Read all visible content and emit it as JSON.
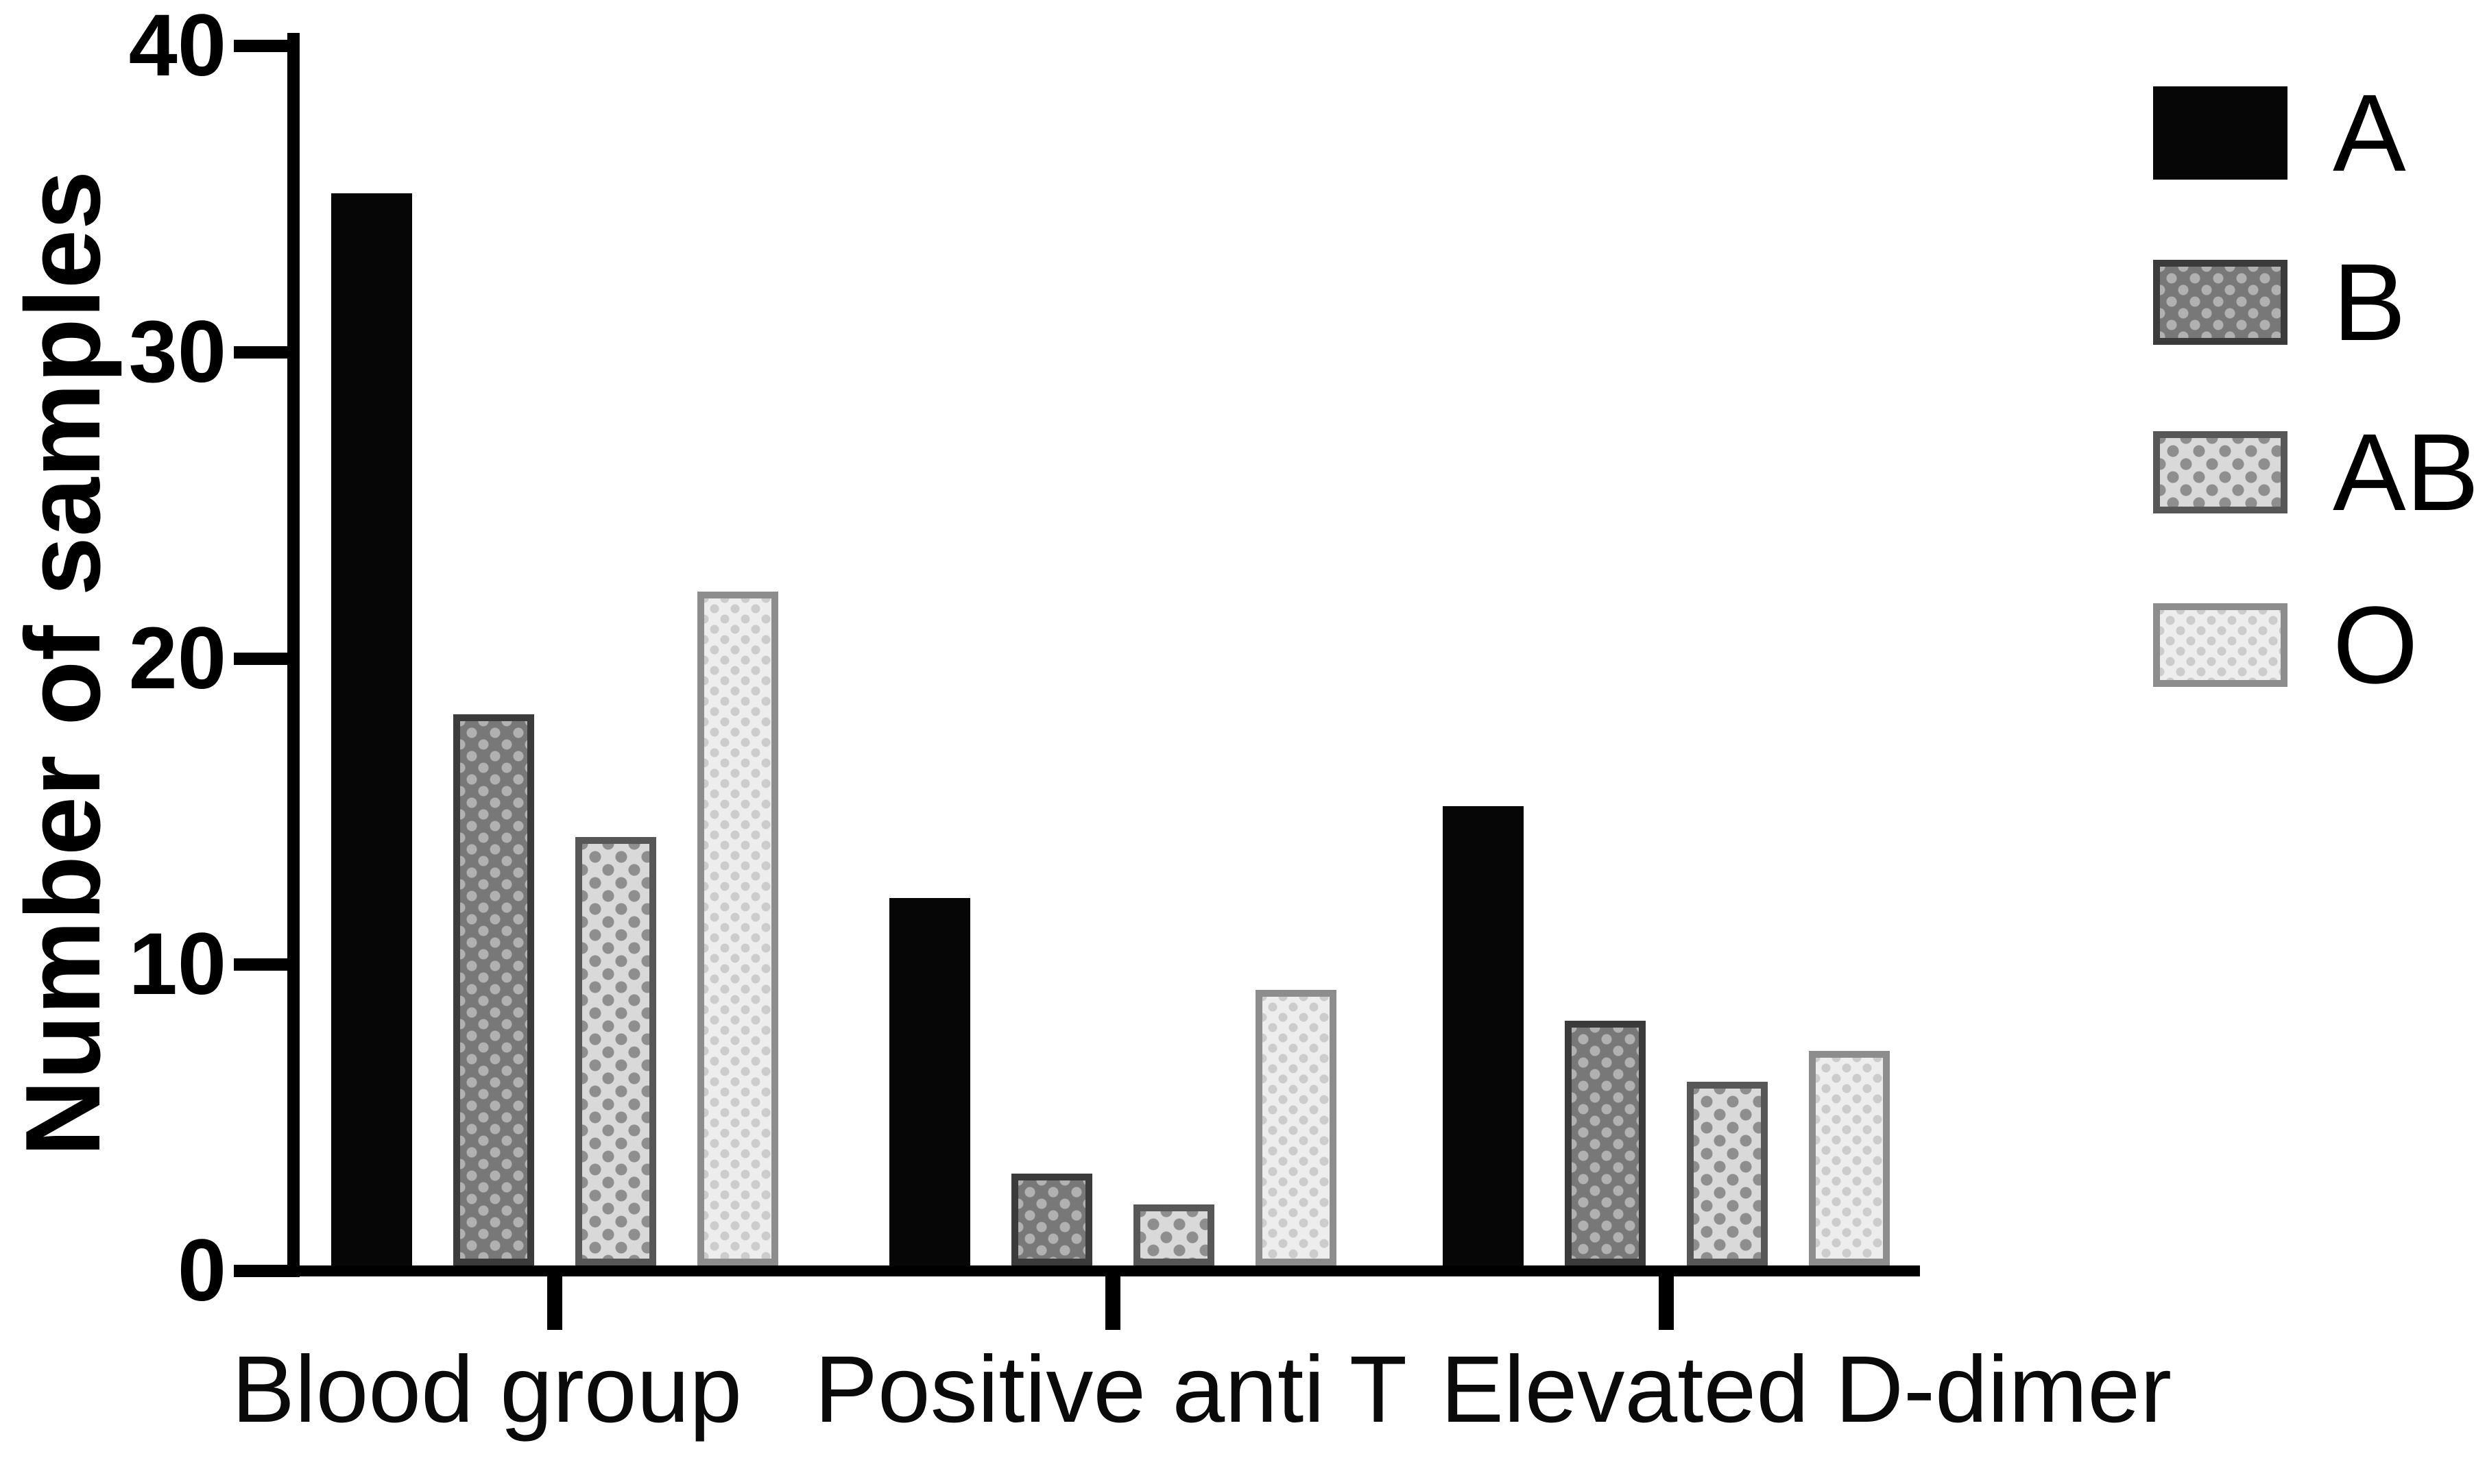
{
  "figure": {
    "background_color": "#ffffff",
    "axis_color": "#000000",
    "text_color": "#000000"
  },
  "chart_data": {
    "type": "bar",
    "title": "",
    "xlabel": "",
    "ylabel": "Number of samples",
    "ylim": [
      0,
      40
    ],
    "yticks": [
      "0",
      "10",
      "20",
      "30",
      "40"
    ],
    "grid": false,
    "legend_position": "top-right",
    "categories": [
      "Blood group",
      "Positive anti T",
      "Elevated D-dimer"
    ],
    "series": [
      {
        "name": "A",
        "values": [
          35,
          12,
          15
        ],
        "fill": "#060606",
        "border": "#060606",
        "pattern": "solid"
      },
      {
        "name": "B",
        "values": [
          18,
          3,
          8
        ],
        "fill": "#787878",
        "border": "#3b3b3b",
        "pattern": "light-dots"
      },
      {
        "name": "AB",
        "values": [
          14,
          2,
          6
        ],
        "fill": "#d9d9d9",
        "border": "#575757",
        "pattern": "dark-dots"
      },
      {
        "name": "O",
        "values": [
          22,
          9,
          7
        ],
        "fill": "#ededed",
        "border": "#8d8d8d",
        "pattern": "faint-dots"
      }
    ]
  }
}
